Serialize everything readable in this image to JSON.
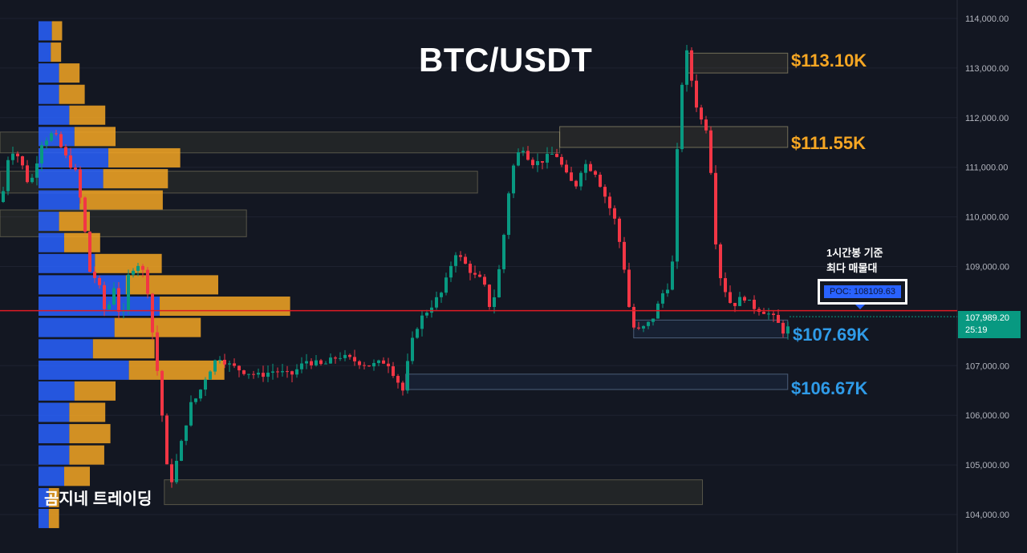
{
  "chart_data": {
    "type": "candlestick",
    "title": "BTC/USDT",
    "symbol": "BTC/USDT",
    "timeframe_note": "1시간봉 기준\n최다 매물대",
    "y_axis": {
      "ticks": [
        "114,000.00",
        "113,000.00",
        "112,000.00",
        "111,000.00",
        "110,000.00",
        "109,000.00",
        "107,000.00",
        "106,000.00",
        "105,000.00",
        "104,000.00"
      ],
      "tick_values": [
        114000,
        113000,
        112000,
        111000,
        110000,
        109000,
        107000,
        106000,
        105000,
        104000
      ],
      "ylim": [
        103300,
        114300
      ],
      "side": "right"
    },
    "current_price": {
      "value": 107989.2,
      "label": "107,989.20",
      "countdown": "25:19",
      "color": "#089981"
    },
    "poc": {
      "value": 108109.63,
      "label": "POC: 108109.63"
    },
    "levels": [
      {
        "label": "$113.10K",
        "value": 113100,
        "kind": "resistance",
        "zone": [
          112900,
          113300
        ],
        "zone_x": [
          0.668,
          0.767
        ]
      },
      {
        "label": "$111.55K",
        "value": 111550,
        "kind": "resistance",
        "zone": [
          111400,
          111820
        ],
        "zone_x": [
          0.545,
          0.767
        ]
      },
      {
        "label": "$107.69K",
        "value": 107690,
        "kind": "support",
        "zone": [
          107560,
          107920
        ],
        "zone_x": [
          0.617,
          0.767
        ]
      },
      {
        "label": "$106.67K",
        "value": 106670,
        "kind": "support",
        "zone": [
          106520,
          106830
        ],
        "zone_x": [
          0.395,
          0.767
        ]
      }
    ],
    "extra_zones": [
      {
        "zone": [
          111290,
          111710
        ],
        "zone_x": [
          0.0,
          0.545
        ]
      },
      {
        "zone": [
          110480,
          110920
        ],
        "zone_x": [
          0.0,
          0.465
        ]
      },
      {
        "zone": [
          109600,
          110140
        ],
        "zone_x": [
          0.0,
          0.24
        ]
      },
      {
        "zone": [
          104200,
          104700
        ],
        "zone_x": [
          0.16,
          0.684
        ]
      }
    ],
    "volume_profile": {
      "rows": [
        {
          "price": 113750,
          "up": 0.013,
          "down": 0.01
        },
        {
          "price": 113320,
          "up": 0.012,
          "down": 0.01
        },
        {
          "price": 112900,
          "up": 0.02,
          "down": 0.02
        },
        {
          "price": 112470,
          "up": 0.02,
          "down": 0.025
        },
        {
          "price": 112050,
          "up": 0.03,
          "down": 0.035
        },
        {
          "price": 111620,
          "up": 0.035,
          "down": 0.04
        },
        {
          "price": 111190,
          "up": 0.068,
          "down": 0.07
        },
        {
          "price": 110770,
          "up": 0.063,
          "down": 0.063
        },
        {
          "price": 110340,
          "up": 0.04,
          "down": 0.081
        },
        {
          "price": 109910,
          "up": 0.02,
          "down": 0.03
        },
        {
          "price": 109480,
          "up": 0.025,
          "down": 0.035
        },
        {
          "price": 109060,
          "up": 0.055,
          "down": 0.065
        },
        {
          "price": 108630,
          "up": 0.085,
          "down": 0.09
        },
        {
          "price": 108200,
          "up": 0.118,
          "down": 0.127
        },
        {
          "price": 107770,
          "up": 0.074,
          "down": 0.084
        },
        {
          "price": 107340,
          "up": 0.053,
          "down": 0.06
        },
        {
          "price": 106910,
          "up": 0.088,
          "down": 0.093
        },
        {
          "price": 106490,
          "up": 0.035,
          "down": 0.04
        },
        {
          "price": 106060,
          "up": 0.03,
          "down": 0.035
        },
        {
          "price": 105630,
          "up": 0.03,
          "down": 0.04
        },
        {
          "price": 105200,
          "up": 0.03,
          "down": 0.034
        },
        {
          "price": 104770,
          "up": 0.025,
          "down": 0.025
        },
        {
          "price": 104340,
          "up": 0.01,
          "down": 0.01
        },
        {
          "price": 103920,
          "up": 0.01,
          "down": 0.01
        }
      ],
      "up_color": "#2962ff",
      "down_color": "#f5a623"
    },
    "series": [
      {
        "name": "candles",
        "anchors": [
          [
            0,
            110300
          ],
          [
            10,
            111400
          ],
          [
            22,
            111200
          ],
          [
            35,
            110600
          ],
          [
            50,
            111500
          ],
          [
            65,
            111700
          ],
          [
            80,
            111200
          ],
          [
            92,
            110900
          ],
          [
            100,
            110200
          ],
          [
            110,
            108900
          ],
          [
            120,
            108700
          ],
          [
            130,
            108000
          ],
          [
            140,
            108600
          ],
          [
            150,
            107800
          ],
          [
            158,
            108800
          ],
          [
            168,
            109100
          ],
          [
            180,
            108800
          ],
          [
            190,
            107400
          ],
          [
            198,
            106400
          ],
          [
            205,
            105000
          ],
          [
            212,
            104700
          ],
          [
            222,
            105300
          ],
          [
            235,
            106200
          ],
          [
            245,
            106400
          ],
          [
            255,
            106800
          ],
          [
            270,
            107200
          ],
          [
            285,
            107000
          ],
          [
            300,
            106900
          ],
          [
            320,
            106800
          ],
          [
            340,
            106900
          ],
          [
            360,
            106800
          ],
          [
            380,
            107100
          ],
          [
            400,
            107000
          ],
          [
            420,
            107200
          ],
          [
            440,
            107100
          ],
          [
            460,
            107000
          ],
          [
            480,
            107100
          ],
          [
            500,
            106500
          ],
          [
            510,
            107400
          ],
          [
            520,
            107900
          ],
          [
            535,
            108200
          ],
          [
            550,
            108500
          ],
          [
            565,
            109300
          ],
          [
            575,
            109100
          ],
          [
            590,
            108800
          ],
          [
            600,
            108700
          ],
          [
            610,
            108100
          ],
          [
            618,
            108700
          ],
          [
            625,
            109500
          ],
          [
            632,
            110500
          ],
          [
            640,
            111200
          ],
          [
            650,
            111400
          ],
          [
            660,
            111100
          ],
          [
            670,
            111100
          ],
          [
            690,
            111300
          ],
          [
            705,
            110800
          ],
          [
            715,
            110600
          ],
          [
            725,
            111100
          ],
          [
            740,
            110900
          ],
          [
            755,
            110300
          ],
          [
            765,
            109900
          ],
          [
            775,
            109100
          ],
          [
            785,
            107800
          ],
          [
            795,
            107700
          ],
          [
            810,
            107900
          ],
          [
            825,
            108500
          ],
          [
            835,
            108700
          ],
          [
            842,
            111300
          ],
          [
            848,
            112700
          ],
          [
            855,
            113400
          ],
          [
            862,
            112500
          ],
          [
            870,
            112000
          ],
          [
            878,
            111800
          ],
          [
            885,
            110800
          ],
          [
            892,
            109000
          ],
          [
            900,
            108600
          ],
          [
            910,
            108200
          ],
          [
            925,
            108400
          ],
          [
            935,
            108200
          ],
          [
            950,
            108100
          ],
          [
            960,
            108000
          ],
          [
            970,
            107800
          ],
          [
            978,
            107600
          ],
          [
            983,
            107990
          ]
        ]
      }
    ]
  },
  "labels": {
    "title": "BTC/USDT",
    "note_line1": "1시간봉 기준",
    "note_line2": "최다 매물대",
    "poc": "POC: 108109.63",
    "price_value": "107,989.20",
    "price_countdown": "25:19",
    "brand": "곰지네 트레이딩",
    "level_113": "$113.10K",
    "level_111": "$111.55K",
    "level_107": "$107.69K",
    "level_106": "$106.67K"
  },
  "colors": {
    "background": "#131722",
    "bull": "#089981",
    "bear": "#f23645",
    "poc_line": "#e01b24",
    "resistance_label": "#f5a623",
    "support_label": "#2f9be8",
    "axis_text": "#b2b5be",
    "grid": "#1e2230"
  }
}
